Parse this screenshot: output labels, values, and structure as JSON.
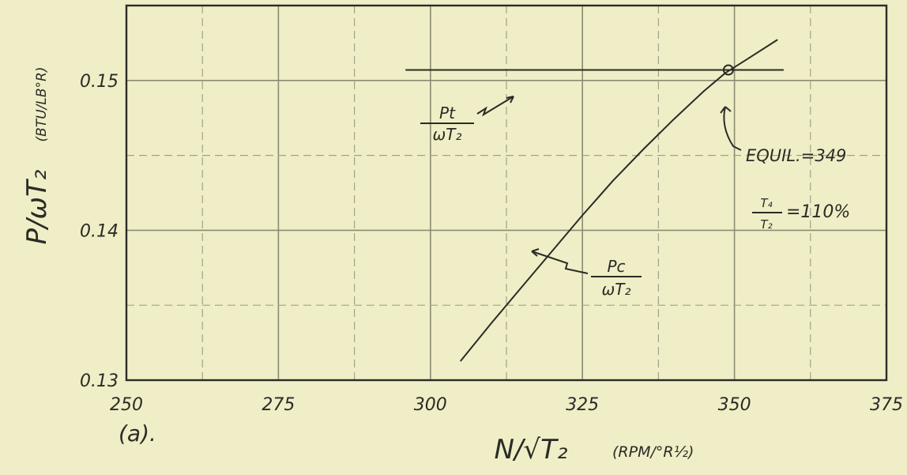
{
  "chart_data": {
    "type": "line",
    "panel_label": "(a).",
    "xlabel": "N/√T₂",
    "xlabel_units": "(RPM/°R½)",
    "ylabel": "P/ωT₂",
    "ylabel_units": "(BTU/LB°R)",
    "xlim": [
      250,
      375
    ],
    "ylim": [
      0.13,
      0.155
    ],
    "x_ticks": [
      250,
      275,
      300,
      325,
      350,
      375
    ],
    "x_tick_labels": [
      "250",
      "275",
      "300",
      "325",
      "350",
      "375"
    ],
    "y_ticks": [
      0.13,
      0.14,
      0.15
    ],
    "y_tick_labels": [
      "0.13",
      "0.14",
      "0.15"
    ],
    "grid": true,
    "series": [
      {
        "name": "Pt/ωT₂",
        "label_num": "Pt",
        "label_den": "ωT₂",
        "x": [
          296,
          358
        ],
        "y": [
          0.1507,
          0.1507
        ]
      },
      {
        "name": "Pc/ωT₂",
        "label_num": "Pc",
        "label_den": "ωT₂",
        "x": [
          305,
          310,
          315,
          320,
          325,
          330,
          335,
          340,
          345,
          348.5,
          352,
          357
        ],
        "y": [
          0.1313,
          0.1338,
          0.1362,
          0.1386,
          0.141,
          0.1433,
          0.1454,
          0.1474,
          0.1493,
          0.1505,
          0.1514,
          0.1527
        ]
      }
    ],
    "annotations": [
      {
        "text": "EQUIL.=349",
        "x": 349,
        "y": 0.1507
      },
      {
        "text_num": "T₄",
        "text_den": "T₂",
        "text_value": "=110%"
      }
    ]
  }
}
